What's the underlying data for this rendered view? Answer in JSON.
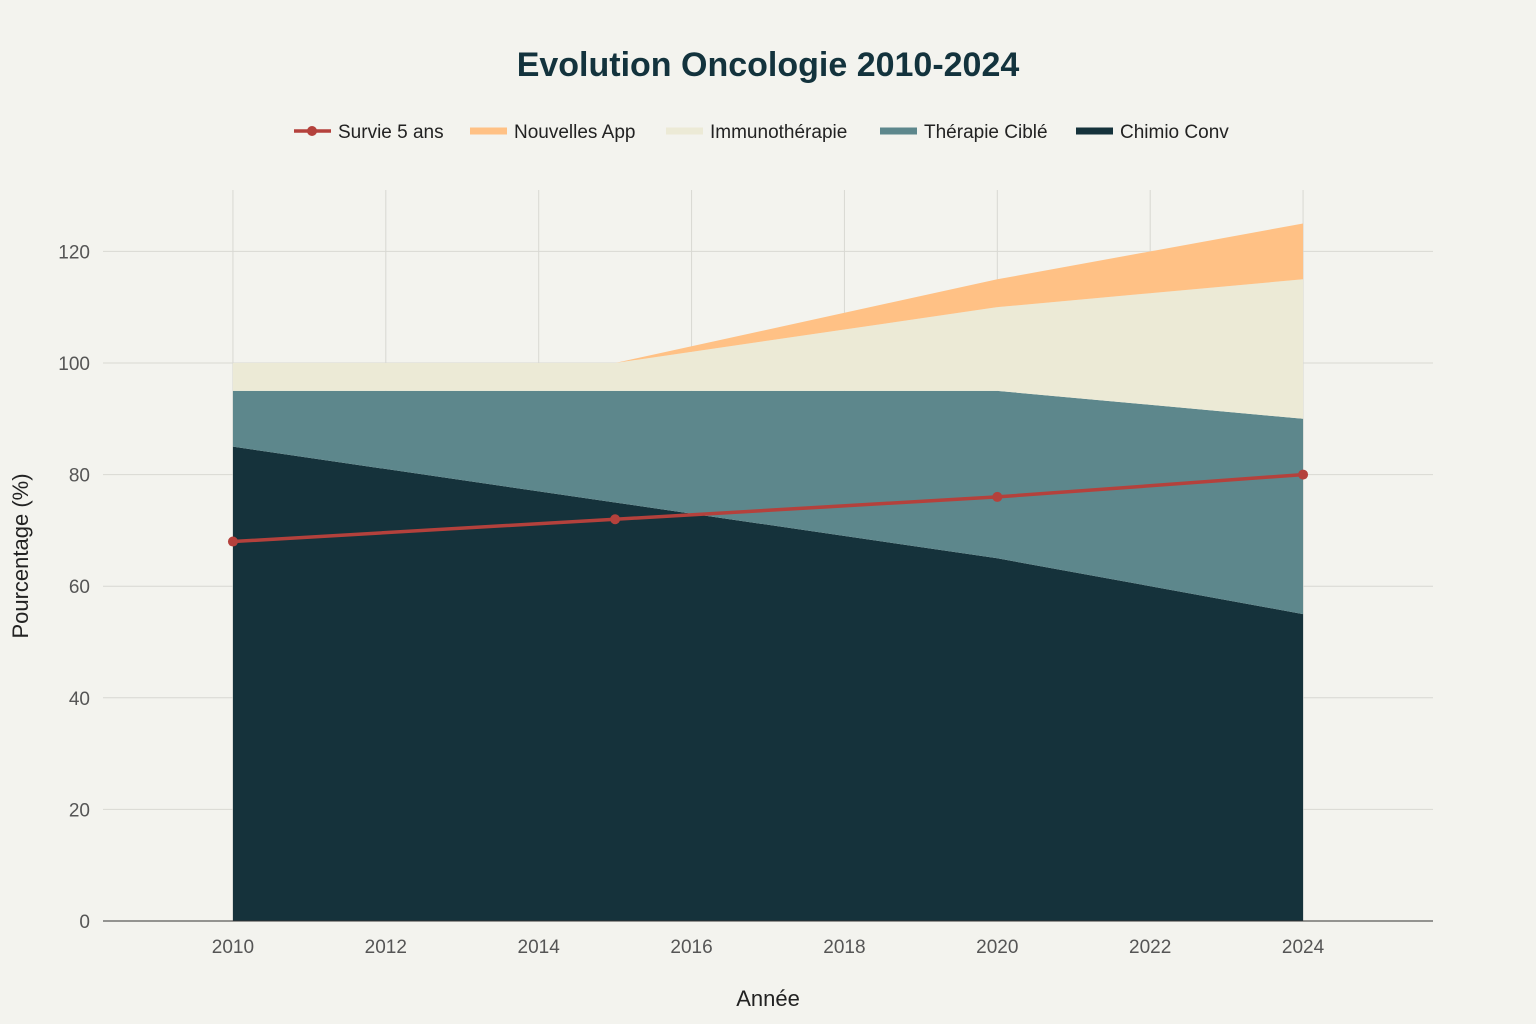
{
  "chart_data": {
    "type": "area",
    "stacked": true,
    "title": "Evolution Oncologie 2010-2024",
    "xlabel": "Année",
    "ylabel": "Pourcentage (%)",
    "x": [
      2010,
      2015,
      2020,
      2024
    ],
    "xlim": [
      2008.3,
      2025.7
    ],
    "ylim": [
      0,
      131
    ],
    "xticks": [
      2010,
      2012,
      2014,
      2016,
      2018,
      2020,
      2022,
      2024
    ],
    "yticks": [
      0,
      20,
      40,
      60,
      80,
      100,
      120
    ],
    "grid": true,
    "legend_position": "top",
    "area_series": [
      {
        "name": "Chimio Conv",
        "values": [
          85,
          75,
          65,
          55
        ],
        "color": "#15323b"
      },
      {
        "name": "Thérapie Ciblé",
        "values": [
          10,
          20,
          30,
          35
        ],
        "color": "#5d878c"
      },
      {
        "name": "Immunothérapie",
        "values": [
          5,
          5,
          15,
          25
        ],
        "color": "#ecead6"
      },
      {
        "name": "Nouvelles App",
        "values": [
          0,
          0,
          5,
          10
        ],
        "color": "#ffc185"
      }
    ],
    "line_series": {
      "name": "Survie 5 ans",
      "values": [
        68,
        72,
        76,
        80
      ],
      "color": "#b4413c"
    },
    "legend_order": [
      "Survie 5 ans",
      "Nouvelles App",
      "Immunothérapie",
      "Thérapie Ciblé",
      "Chimio Conv"
    ]
  }
}
